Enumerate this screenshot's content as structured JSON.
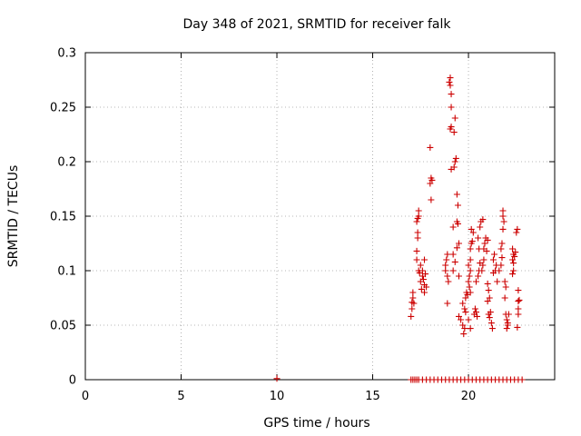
{
  "chart_data": {
    "type": "scatter",
    "title": "Day 348 of 2021, SRMTID for receiver falk",
    "xlabel": "GPS time / hours",
    "ylabel": "SRMTID / TECUs",
    "xlim": [
      0,
      24.5
    ],
    "ylim": [
      0,
      0.3
    ],
    "x_ticks": [
      0,
      5,
      10,
      15,
      20
    ],
    "x_tick_labels": [
      "0",
      "5",
      "10",
      "15",
      "20"
    ],
    "y_ticks": [
      0,
      0.05,
      0.1,
      0.15,
      0.2,
      0.25,
      0.3
    ],
    "y_tick_labels": [
      "0",
      "0.05",
      "0.1",
      "0.15",
      "0.2",
      "0.25",
      "0.3"
    ],
    "grid": true,
    "marker": "plus",
    "color": "#cc0000",
    "series": [
      {
        "points": [
          [
            10.0,
            0.001
          ],
          [
            17.0,
            0.0
          ],
          [
            17.1,
            0.0
          ],
          [
            17.2,
            0.0
          ],
          [
            17.3,
            0.0
          ],
          [
            17.4,
            0.0
          ],
          [
            17.6,
            0.0
          ],
          [
            17.8,
            0.0
          ],
          [
            18.0,
            0.0
          ],
          [
            18.2,
            0.0
          ],
          [
            18.4,
            0.0
          ],
          [
            18.6,
            0.0
          ],
          [
            18.8,
            0.0
          ],
          [
            19.0,
            0.0
          ],
          [
            19.2,
            0.0
          ],
          [
            19.4,
            0.0
          ],
          [
            19.6,
            0.0
          ],
          [
            19.8,
            0.0
          ],
          [
            20.0,
            0.0
          ],
          [
            20.2,
            0.0
          ],
          [
            20.4,
            0.0
          ],
          [
            20.6,
            0.0
          ],
          [
            20.8,
            0.0
          ],
          [
            21.0,
            0.0
          ],
          [
            21.2,
            0.0
          ],
          [
            21.4,
            0.0
          ],
          [
            21.6,
            0.0
          ],
          [
            21.8,
            0.0
          ],
          [
            22.0,
            0.0
          ],
          [
            22.2,
            0.0
          ],
          [
            22.4,
            0.0
          ],
          [
            22.6,
            0.0
          ],
          [
            22.8,
            0.0
          ],
          [
            17.0,
            0.058
          ],
          [
            17.05,
            0.065
          ],
          [
            17.05,
            0.071
          ],
          [
            17.1,
            0.075
          ],
          [
            17.1,
            0.08
          ],
          [
            17.15,
            0.07
          ],
          [
            17.3,
            0.11
          ],
          [
            17.3,
            0.118
          ],
          [
            17.35,
            0.13
          ],
          [
            17.35,
            0.135
          ],
          [
            17.3,
            0.145
          ],
          [
            17.4,
            0.15
          ],
          [
            17.4,
            0.155
          ],
          [
            17.35,
            0.148
          ],
          [
            17.4,
            0.1
          ],
          [
            17.45,
            0.098
          ],
          [
            17.5,
            0.09
          ],
          [
            17.55,
            0.083
          ],
          [
            17.5,
            0.105
          ],
          [
            17.6,
            0.095
          ],
          [
            17.6,
            0.1
          ],
          [
            17.65,
            0.092
          ],
          [
            17.7,
            0.087
          ],
          [
            17.7,
            0.11
          ],
          [
            17.75,
            0.097
          ],
          [
            17.8,
            0.085
          ],
          [
            17.7,
            0.08
          ],
          [
            18.0,
            0.213
          ],
          [
            18.05,
            0.185
          ],
          [
            18.1,
            0.183
          ],
          [
            18.05,
            0.165
          ],
          [
            18.0,
            0.18
          ],
          [
            18.8,
            0.105
          ],
          [
            18.85,
            0.11
          ],
          [
            18.9,
            0.115
          ],
          [
            18.8,
            0.1
          ],
          [
            18.9,
            0.095
          ],
          [
            18.95,
            0.09
          ],
          [
            18.9,
            0.07
          ],
          [
            19.0,
            0.273
          ],
          [
            19.05,
            0.277
          ],
          [
            19.05,
            0.27
          ],
          [
            19.1,
            0.262
          ],
          [
            19.1,
            0.25
          ],
          [
            19.05,
            0.23
          ],
          [
            19.1,
            0.232
          ],
          [
            19.3,
            0.24
          ],
          [
            19.25,
            0.227
          ],
          [
            19.3,
            0.2
          ],
          [
            19.25,
            0.195
          ],
          [
            19.35,
            0.203
          ],
          [
            19.1,
            0.193
          ],
          [
            19.4,
            0.17
          ],
          [
            19.45,
            0.16
          ],
          [
            19.4,
            0.145
          ],
          [
            19.45,
            0.143
          ],
          [
            19.2,
            0.14
          ],
          [
            19.5,
            0.125
          ],
          [
            19.4,
            0.121
          ],
          [
            19.2,
            0.115
          ],
          [
            19.3,
            0.108
          ],
          [
            19.2,
            0.1
          ],
          [
            19.5,
            0.095
          ],
          [
            19.5,
            0.058
          ],
          [
            19.6,
            0.055
          ],
          [
            19.7,
            0.05
          ],
          [
            19.75,
            0.042
          ],
          [
            19.8,
            0.047
          ],
          [
            19.85,
            0.075
          ],
          [
            19.9,
            0.08
          ],
          [
            19.8,
            0.065
          ],
          [
            19.85,
            0.062
          ],
          [
            19.7,
            0.07
          ],
          [
            20.0,
            0.09
          ],
          [
            20.05,
            0.095
          ],
          [
            20.1,
            0.1
          ],
          [
            20.0,
            0.105
          ],
          [
            20.1,
            0.11
          ],
          [
            20.1,
            0.12
          ],
          [
            20.15,
            0.125
          ],
          [
            20.2,
            0.127
          ],
          [
            20.25,
            0.135
          ],
          [
            20.15,
            0.138
          ],
          [
            20.05,
            0.085
          ],
          [
            20.1,
            0.08
          ],
          [
            19.95,
            0.078
          ],
          [
            20.0,
            0.055
          ],
          [
            20.1,
            0.047
          ],
          [
            20.3,
            0.06
          ],
          [
            20.35,
            0.065
          ],
          [
            20.4,
            0.09
          ],
          [
            20.5,
            0.095
          ],
          [
            20.55,
            0.1
          ],
          [
            20.5,
            0.13
          ],
          [
            20.55,
            0.12
          ],
          [
            20.6,
            0.14
          ],
          [
            20.65,
            0.145
          ],
          [
            20.7,
            0.1
          ],
          [
            20.75,
            0.105
          ],
          [
            20.6,
            0.107
          ],
          [
            20.8,
            0.11
          ],
          [
            20.8,
            0.12
          ],
          [
            20.85,
            0.125
          ],
          [
            20.75,
            0.147
          ],
          [
            20.9,
            0.13
          ],
          [
            20.95,
            0.118
          ],
          [
            21.0,
            0.128
          ],
          [
            21.0,
            0.088
          ],
          [
            21.05,
            0.082
          ],
          [
            21.1,
            0.075
          ],
          [
            21.0,
            0.072
          ],
          [
            21.05,
            0.06
          ],
          [
            21.1,
            0.057
          ],
          [
            21.15,
            0.062
          ],
          [
            21.2,
            0.052
          ],
          [
            21.25,
            0.047
          ],
          [
            20.4,
            0.062
          ],
          [
            20.45,
            0.058
          ],
          [
            21.3,
            0.11
          ],
          [
            21.35,
            0.115
          ],
          [
            21.4,
            0.1
          ],
          [
            21.45,
            0.105
          ],
          [
            21.3,
            0.098
          ],
          [
            21.5,
            0.09
          ],
          [
            21.6,
            0.1
          ],
          [
            21.7,
            0.105
          ],
          [
            21.75,
            0.112
          ],
          [
            21.7,
            0.12
          ],
          [
            21.75,
            0.125
          ],
          [
            21.8,
            0.15
          ],
          [
            21.8,
            0.155
          ],
          [
            21.85,
            0.145
          ],
          [
            21.8,
            0.138
          ],
          [
            21.9,
            0.09
          ],
          [
            21.95,
            0.085
          ],
          [
            21.9,
            0.075
          ],
          [
            21.95,
            0.06
          ],
          [
            22.0,
            0.055
          ],
          [
            22.05,
            0.052
          ],
          [
            22.0,
            0.047
          ],
          [
            22.1,
            0.06
          ],
          [
            22.05,
            0.05
          ],
          [
            22.3,
            0.12
          ],
          [
            22.35,
            0.115
          ],
          [
            22.3,
            0.11
          ],
          [
            22.4,
            0.113
          ],
          [
            22.45,
            0.117
          ],
          [
            22.35,
            0.107
          ],
          [
            22.5,
            0.135
          ],
          [
            22.55,
            0.138
          ],
          [
            22.6,
            0.082
          ],
          [
            22.6,
            0.072
          ],
          [
            22.65,
            0.073
          ],
          [
            22.6,
            0.065
          ],
          [
            22.6,
            0.06
          ],
          [
            22.55,
            0.048
          ],
          [
            22.35,
            0.1
          ],
          [
            22.3,
            0.097
          ]
        ]
      }
    ]
  }
}
